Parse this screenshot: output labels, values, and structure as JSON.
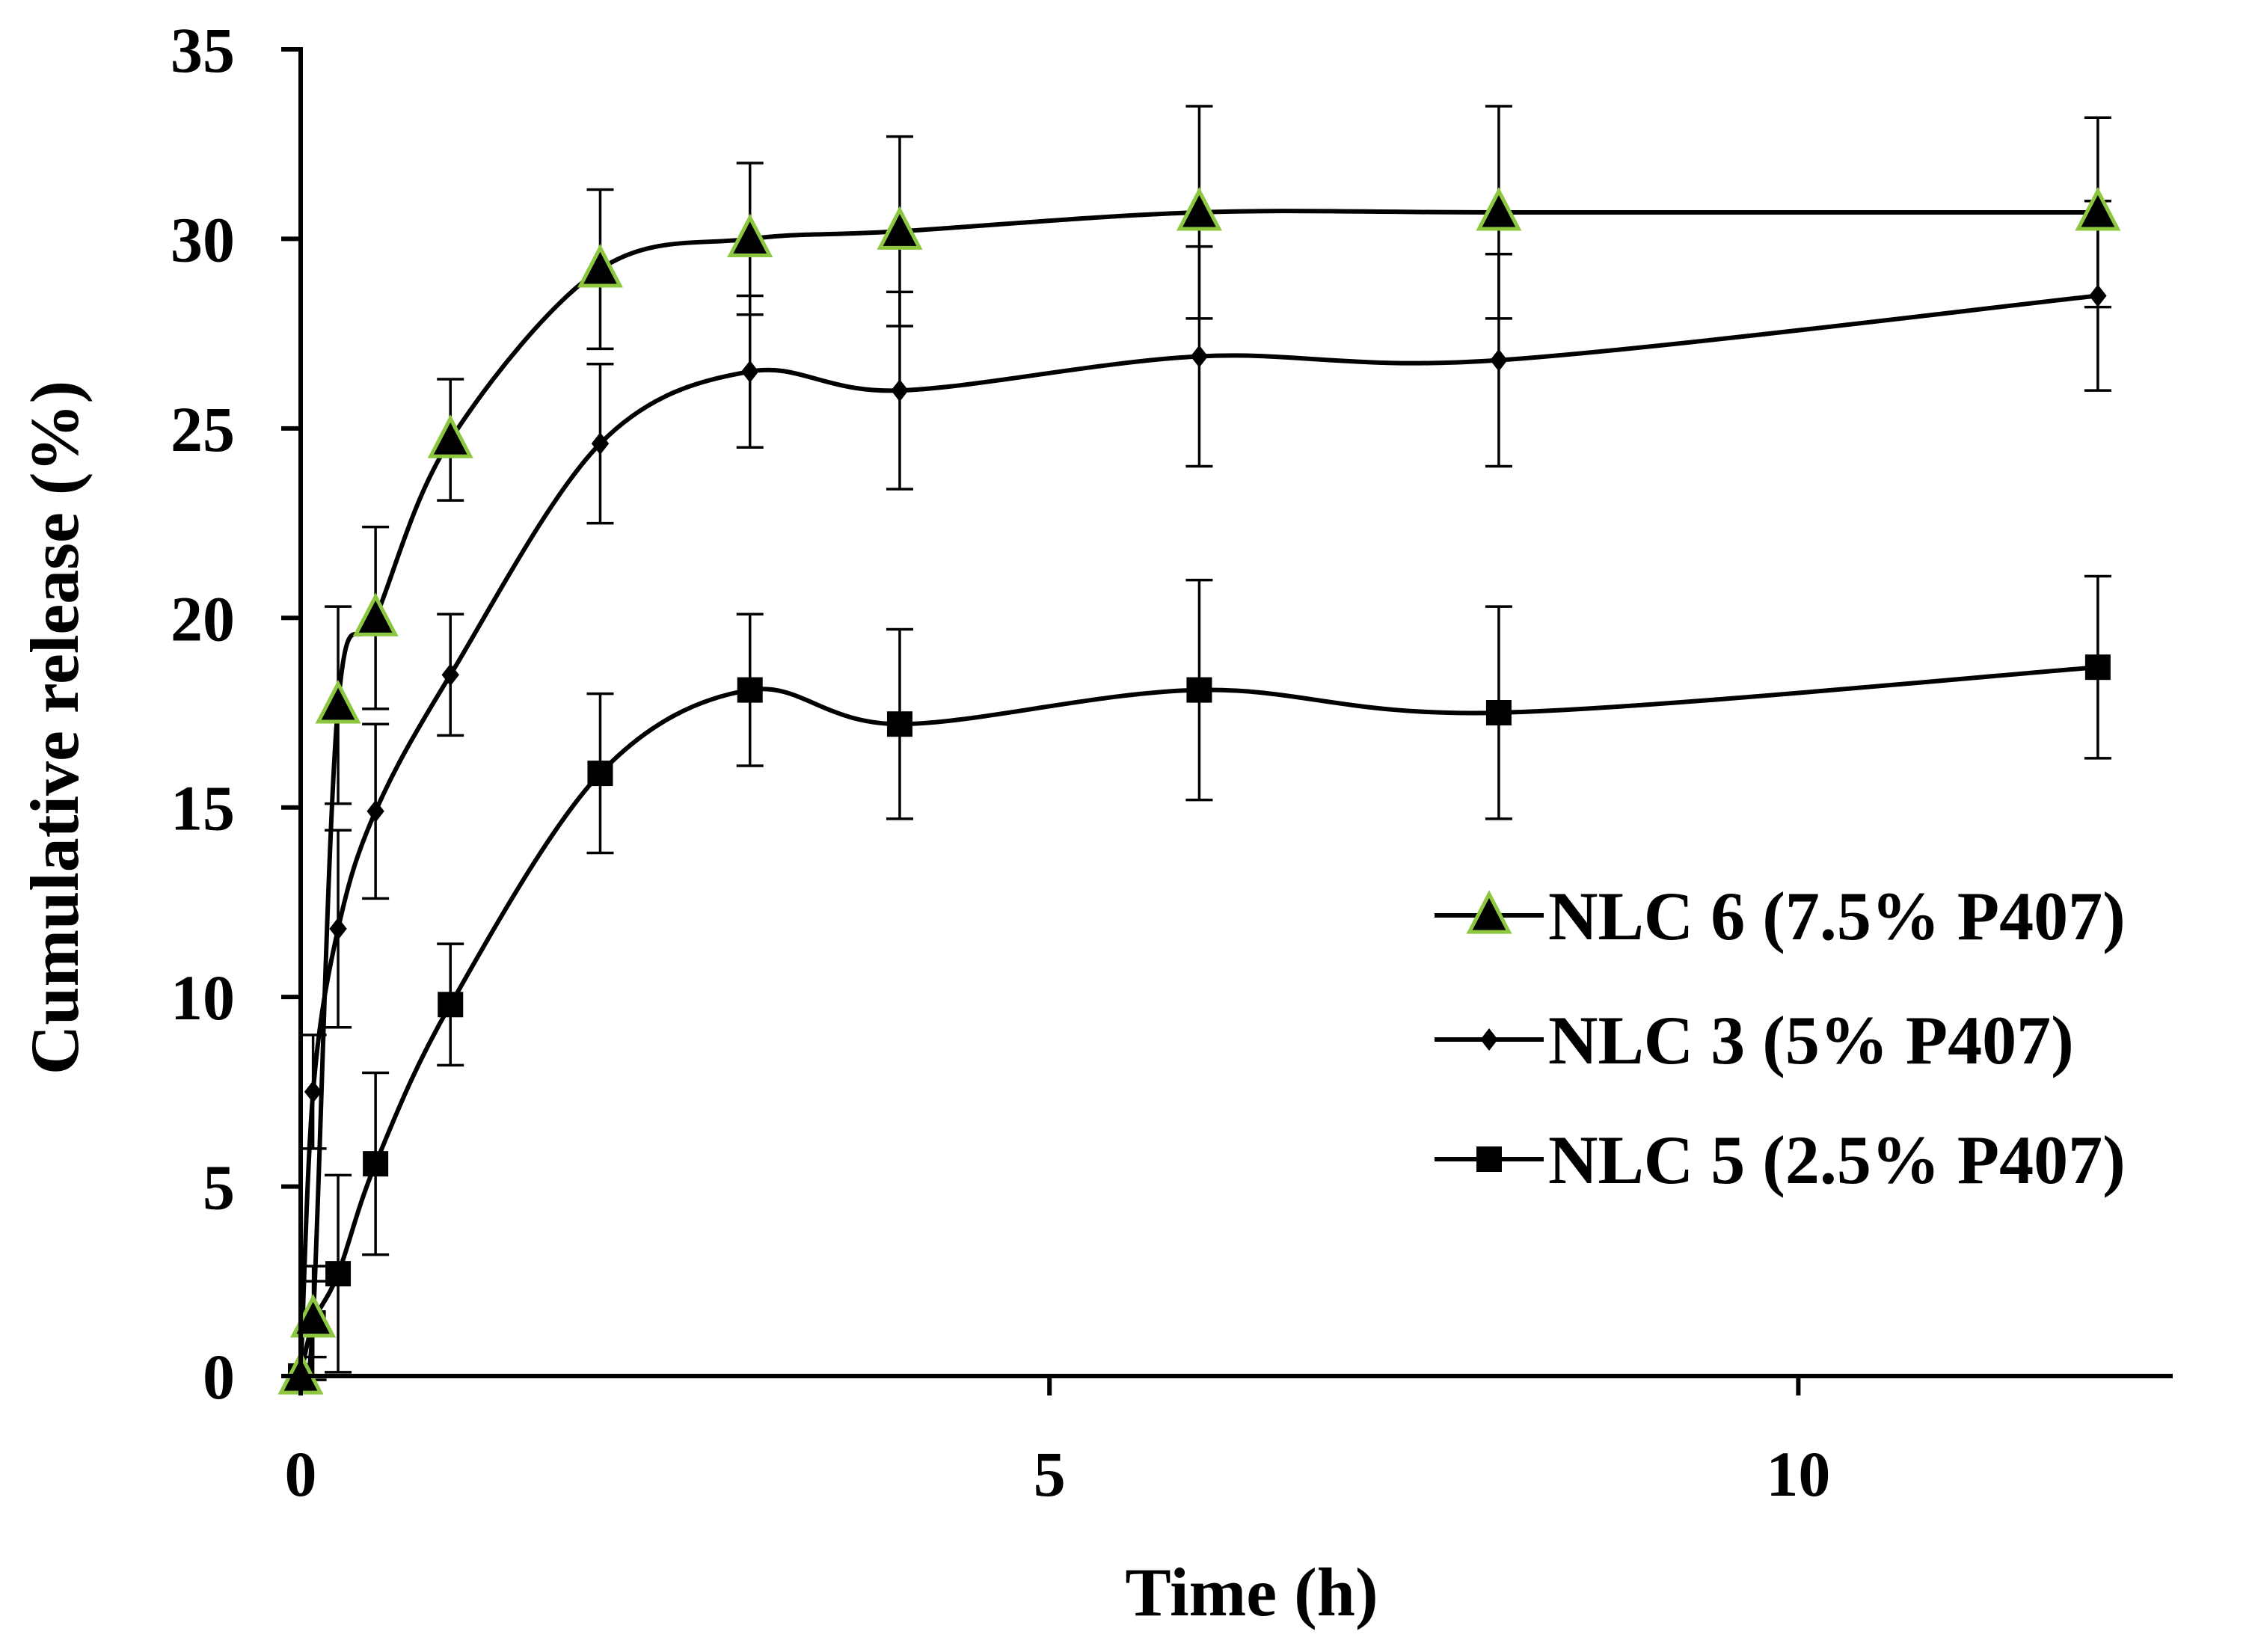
{
  "chart_data": {
    "type": "line",
    "title": "",
    "xlabel": "Time (h)",
    "ylabel": "Cumulative release (%)",
    "xlim": [
      0,
      12.5
    ],
    "ylim": [
      0,
      35
    ],
    "xticks": [
      0,
      5,
      10
    ],
    "yticks": [
      0,
      5,
      10,
      15,
      20,
      25,
      30,
      35
    ],
    "x": [
      0,
      0.083,
      0.25,
      0.5,
      1,
      2,
      3,
      4,
      6,
      8,
      12
    ],
    "smooth": true,
    "legend_position": "right",
    "series": [
      {
        "name": "NLC 6 (7.5% P407)",
        "marker": "triangle",
        "marker_fill": "#000000",
        "marker_edge": "#8dc63f",
        "values": [
          0,
          1.5,
          17.7,
          20.0,
          24.7,
          29.2,
          30.0,
          30.2,
          30.7,
          30.7,
          30.7
        ],
        "errors": [
          0,
          1.0,
          2.6,
          2.4,
          1.6,
          2.1,
          2.0,
          2.5,
          2.8,
          2.8,
          2.5
        ]
      },
      {
        "name": "NLC 3 (5% P407)",
        "marker": "diamond",
        "marker_fill": "#000000",
        "values": [
          0,
          7.5,
          11.8,
          14.9,
          18.5,
          24.6,
          26.5,
          26.0,
          26.9,
          26.8,
          28.5
        ],
        "errors": [
          0,
          1.5,
          2.6,
          2.3,
          1.6,
          2.1,
          2.0,
          2.6,
          2.9,
          2.8,
          2.5
        ]
      },
      {
        "name": "NLC 5 (2.5% P407)",
        "marker": "square",
        "marker_fill": "#000000",
        "values": [
          0,
          1.4,
          2.7,
          5.6,
          9.8,
          15.9,
          18.1,
          17.2,
          18.1,
          17.5,
          18.7
        ],
        "errors": [
          0,
          1.5,
          2.6,
          2.4,
          1.6,
          2.1,
          2.0,
          2.5,
          2.9,
          2.8,
          2.4
        ]
      }
    ]
  }
}
